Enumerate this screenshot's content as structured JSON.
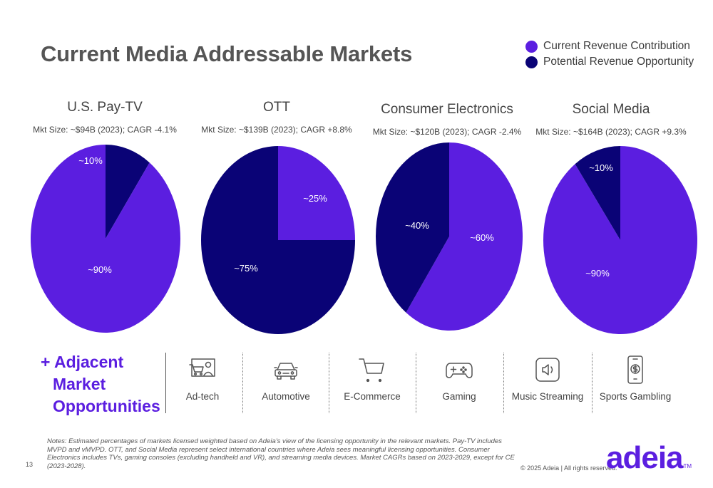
{
  "page_title": "Current Media Addressable Markets",
  "legend": [
    {
      "label": "Current Revenue Contribution",
      "color": "#5b1ee0"
    },
    {
      "label": "Potential Revenue Opportunity",
      "color": "#0a0376"
    }
  ],
  "chart_data": [
    {
      "type": "pie",
      "title": "U.S. Pay-TV",
      "subtitle": "Mkt Size:  ~$94B (2023); CAGR -4.1%",
      "slices": [
        {
          "label": "~10%",
          "value": 10,
          "color": "#0a0376",
          "series": "Potential Revenue Opportunity"
        },
        {
          "label": "~90%",
          "value": 90,
          "color": "#5b1ee0",
          "series": "Current Revenue Contribution"
        }
      ]
    },
    {
      "type": "pie",
      "title": "OTT",
      "subtitle": "Mkt Size:  ~$139B (2023); CAGR +8.8%",
      "slices": [
        {
          "label": "~25%",
          "value": 25,
          "color": "#5b1ee0",
          "series": "Current Revenue Contribution"
        },
        {
          "label": "~75%",
          "value": 75,
          "color": "#0a0376",
          "series": "Potential Revenue Opportunity"
        }
      ]
    },
    {
      "type": "pie",
      "title": "Consumer Electronics",
      "subtitle": "Mkt Size:  ~$120B (2023); CAGR -2.4%",
      "slices": [
        {
          "label": "~60%",
          "value": 60,
          "color": "#5b1ee0",
          "series": "Current Revenue Contribution"
        },
        {
          "label": "~40%",
          "value": 40,
          "color": "#0a0376",
          "series": "Potential Revenue Opportunity"
        }
      ]
    },
    {
      "type": "pie",
      "title": "Social Media",
      "subtitle": "Mkt Size:  ~$164B (2023); CAGR +9.3%",
      "slices": [
        {
          "label": "~90%",
          "value": 90,
          "color": "#5b1ee0",
          "series": "Current Revenue Contribution"
        },
        {
          "label": "~10%",
          "value": 10,
          "color": "#0a0376",
          "series": "Potential Revenue Opportunity"
        }
      ]
    }
  ],
  "adjacent": {
    "title_line1": "+ Adjacent",
    "title_line2": "Market",
    "title_line3": "Opportunities",
    "items": [
      {
        "label": "Ad-tech",
        "icon": "ad-tech-icon"
      },
      {
        "label": "Automotive",
        "icon": "car-icon"
      },
      {
        "label": "E-Commerce",
        "icon": "shopping-cart-icon"
      },
      {
        "label": "Gaming",
        "icon": "game-controller-icon"
      },
      {
        "label": "Music Streaming",
        "icon": "speaker-icon"
      },
      {
        "label": "Sports Gambling",
        "icon": "phone-dollar-icon"
      }
    ]
  },
  "footer": {
    "notes": "Notes: Estimated percentages of markets licensed weighted based on Adeia’s view of the licensing opportunity in the relevant markets. Pay-TV includes MVPD and vMVPD. OTT, and Social Media represent select international countries where Adeia sees meaningful licensing opportunities. Consumer Electronics includes TVs, gaming consoles (excluding handheld and VR), and streaming media devices. Market CAGRs based on 2023-2029, except for CE (2023-2028).",
    "page_number": "13",
    "copyright": "© 2025 Adeia | All rights reserved.",
    "logo_text": "adeia",
    "logo_tm": "TM"
  }
}
